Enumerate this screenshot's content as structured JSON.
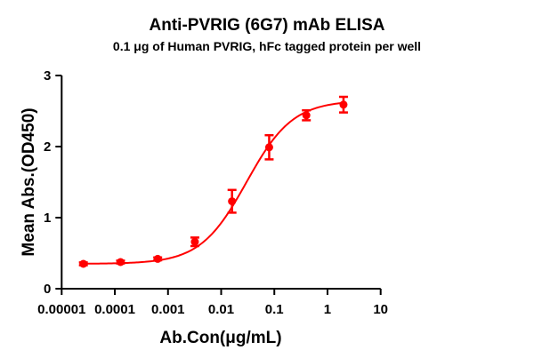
{
  "chart_data": {
    "type": "scatter",
    "title": "Anti-PVRIG (6G7) mAb ELISA",
    "subtitle": "0.1 μg of Human PVRIG, hFc tagged protein per well",
    "xlabel": "Ab.Con(μg/mL)",
    "ylabel": "Mean Abs.(OD450)",
    "xscale": "log",
    "xlim": [
      1e-05,
      10
    ],
    "ylim": [
      0,
      3
    ],
    "xticks": [
      1e-05,
      0.0001,
      0.001,
      0.01,
      0.1,
      1,
      10
    ],
    "xtick_labels": [
      "0.00001",
      "0.0001",
      "0.001",
      "0.01",
      "0.1",
      "1",
      "10"
    ],
    "yticks": [
      0,
      1,
      2,
      3
    ],
    "ytick_labels": [
      "0",
      "1",
      "2",
      "3"
    ],
    "grid": false,
    "color": "#ff0000",
    "points": {
      "x": [
        2.56e-05,
        0.000128,
        0.00064,
        0.0032,
        0.016,
        0.08,
        0.4,
        2
      ],
      "y": [
        0.35,
        0.375,
        0.42,
        0.66,
        1.23,
        1.99,
        2.44,
        2.59
      ],
      "error": [
        0.02,
        0.02,
        0.02,
        0.06,
        0.16,
        0.17,
        0.07,
        0.11
      ]
    },
    "fit": {
      "model": "4PL",
      "bottom": 0.35,
      "top": 2.65,
      "ec50": 0.03,
      "hill": 1.0
    }
  }
}
